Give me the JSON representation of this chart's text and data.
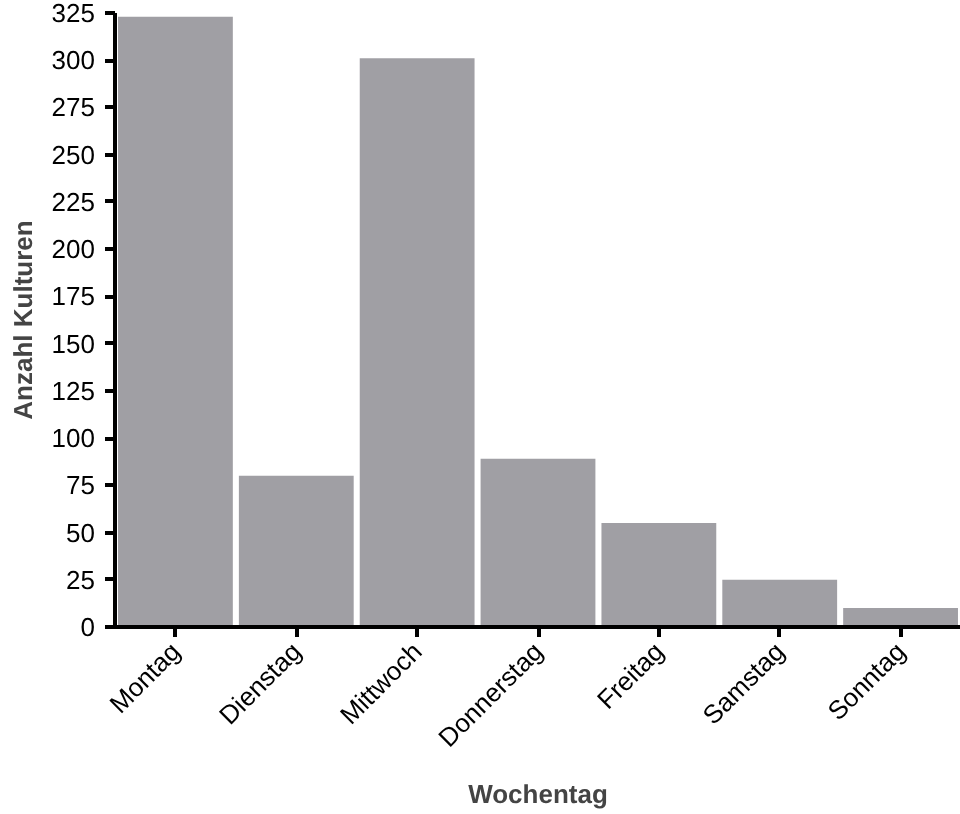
{
  "chart_data": {
    "type": "bar",
    "xlabel": "Wochentag",
    "ylabel": "Anzahl Kulturen",
    "categories": [
      "Montag",
      "Dienstag",
      "Mittwoch",
      "Donnerstag",
      "Freitag",
      "Samstag",
      "Sonntag"
    ],
    "values": [
      323,
      80,
      301,
      89,
      55,
      25,
      10
    ],
    "color": "#a09fa4",
    "ylim": [
      0,
      325
    ],
    "yticks": [
      0,
      25,
      50,
      75,
      100,
      125,
      150,
      175,
      200,
      225,
      250,
      275,
      300,
      325
    ],
    "grid": false
  }
}
